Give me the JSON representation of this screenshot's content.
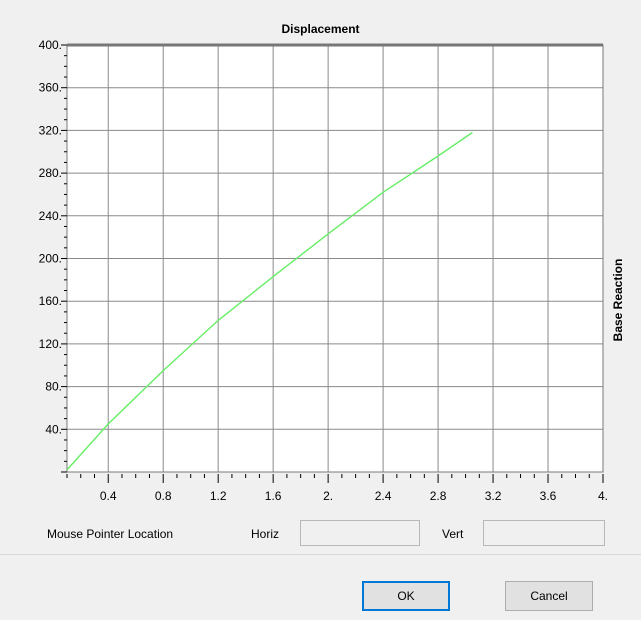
{
  "window": {
    "chart_title": "Displacement",
    "side_label": "Base Reaction"
  },
  "chart_data": {
    "type": "line",
    "title": "Displacement",
    "xlabel": "",
    "ylabel": "Base Reaction",
    "xlim": [
      0.1,
      4.0
    ],
    "ylim": [
      0,
      400
    ],
    "x_ticks": [
      "0.4",
      "0.8",
      "1.2",
      "1.6",
      "2.",
      "2.4",
      "2.8",
      "3.2",
      "3.6",
      "4."
    ],
    "y_ticks": [
      "40.",
      "80.",
      "120.",
      "160.",
      "200.",
      "240.",
      "280.",
      "320.",
      "360.",
      "400."
    ],
    "grid": true,
    "series": [
      {
        "color": "#66ee66",
        "x": [
          0.1,
          0.4,
          0.8,
          1.2,
          1.6,
          2.0,
          2.4,
          2.8,
          3.05
        ],
        "y": [
          2,
          45,
          95,
          142,
          183,
          223,
          262,
          296,
          318
        ]
      }
    ]
  },
  "pointer": {
    "label": "Mouse Pointer Location",
    "horiz_label": "Horiz",
    "horiz_value": "",
    "vert_label": "Vert",
    "vert_value": ""
  },
  "buttons": {
    "ok": "OK",
    "cancel": "Cancel"
  }
}
